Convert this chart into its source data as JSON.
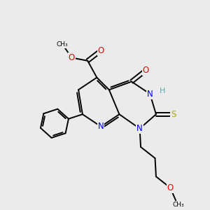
{
  "background_color": "#ebebeb",
  "atom_colors": {
    "C": "#000000",
    "N": "#0000ee",
    "O": "#ee0000",
    "S": "#aaaa00",
    "H": "#5fa8a8"
  },
  "bond_lw": 1.4,
  "dbo": 0.09,
  "figsize": [
    3.0,
    3.0
  ],
  "dpi": 100
}
